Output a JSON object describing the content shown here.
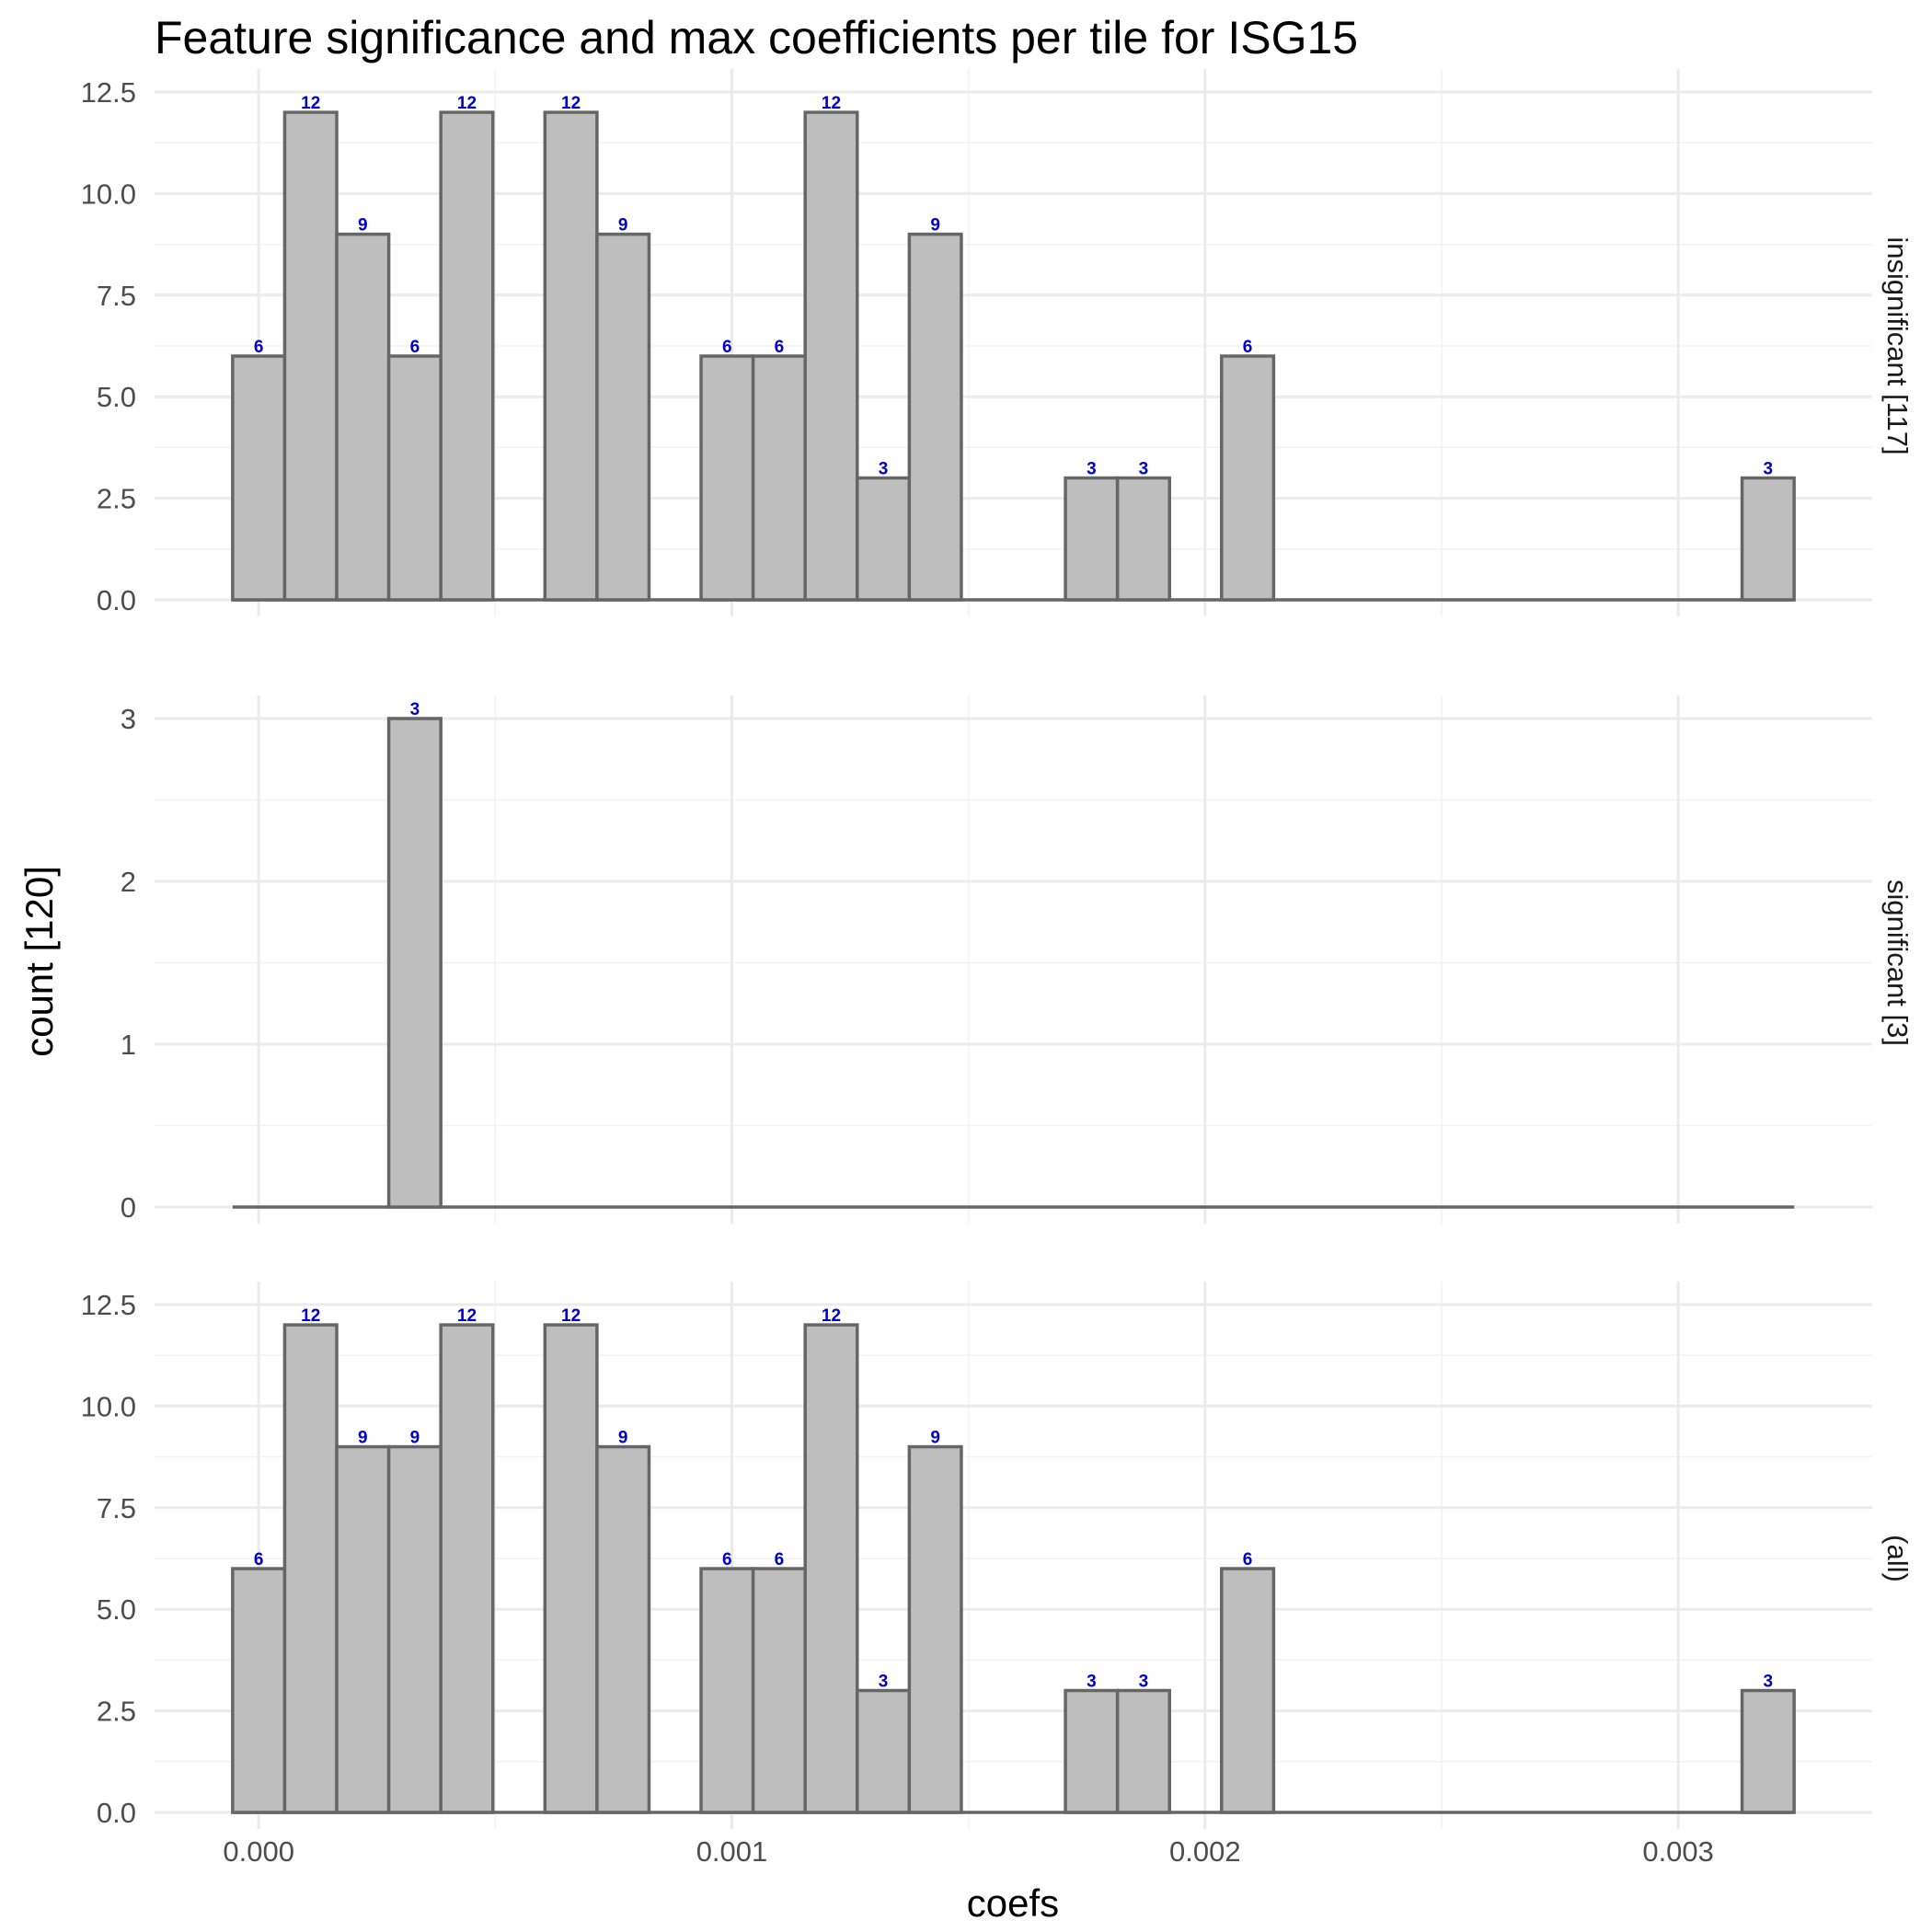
{
  "chart_data": {
    "type": "bar",
    "title": "Feature significance and max coefficients per tile for ISG15",
    "xlabel": "coefs",
    "ylabel": "count [120]",
    "xlim": [
      -0.00022,
      0.00341
    ],
    "x_ticks": [
      0.0,
      0.001,
      0.002,
      0.003
    ],
    "x_tick_labels": [
      "0.000",
      "0.001",
      "0.002",
      "0.003"
    ],
    "bin_width": 0.00011,
    "bin_centers": [
      0.0,
      0.00011,
      0.00022,
      0.00033,
      0.00044,
      0.00055,
      0.00066,
      0.00077,
      0.00088,
      0.00099,
      0.0011,
      0.00121,
      0.00132,
      0.00143,
      0.00154,
      0.00165,
      0.00176,
      0.00187,
      0.00198,
      0.00209,
      0.0022,
      0.00231,
      0.00242,
      0.00253,
      0.00264,
      0.00275,
      0.00286,
      0.00297,
      0.00308,
      0.00319
    ],
    "bar_label_color": "#0000cc",
    "bar_fill": "#bebebe",
    "bar_edge": "#666666",
    "grid": true,
    "panels": [
      {
        "label": "insignificant [117]",
        "ylim": [
          0,
          12.5
        ],
        "y_ticks": [
          0,
          2.5,
          5,
          7.5,
          10,
          12.5
        ],
        "y_tick_labels": [
          "0.0",
          "2.5",
          "5.0",
          "7.5",
          "10.0",
          "12.5"
        ],
        "values": [
          6,
          12,
          9,
          6,
          12,
          0,
          12,
          9,
          0,
          6,
          6,
          12,
          3,
          9,
          0,
          0,
          3,
          3,
          0,
          6,
          0,
          0,
          0,
          0,
          0,
          0,
          0,
          0,
          0,
          3
        ]
      },
      {
        "label": "significant [3]",
        "ylim": [
          0,
          3
        ],
        "y_ticks": [
          0,
          1,
          2,
          3
        ],
        "y_tick_labels": [
          "0",
          "1",
          "2",
          "3"
        ],
        "values": [
          0,
          0,
          0,
          3,
          0,
          0,
          0,
          0,
          0,
          0,
          0,
          0,
          0,
          0,
          0,
          0,
          0,
          0,
          0,
          0,
          0,
          0,
          0,
          0,
          0,
          0,
          0,
          0,
          0,
          0
        ]
      },
      {
        "label": "(all)",
        "ylim": [
          0,
          12.5
        ],
        "y_ticks": [
          0,
          2.5,
          5,
          7.5,
          10,
          12.5
        ],
        "y_tick_labels": [
          "0.0",
          "2.5",
          "5.0",
          "7.5",
          "10.0",
          "12.5"
        ],
        "values": [
          6,
          12,
          9,
          9,
          12,
          0,
          12,
          9,
          0,
          6,
          6,
          12,
          3,
          9,
          0,
          0,
          3,
          3,
          0,
          6,
          0,
          0,
          0,
          0,
          0,
          0,
          0,
          0,
          0,
          3
        ]
      }
    ]
  }
}
